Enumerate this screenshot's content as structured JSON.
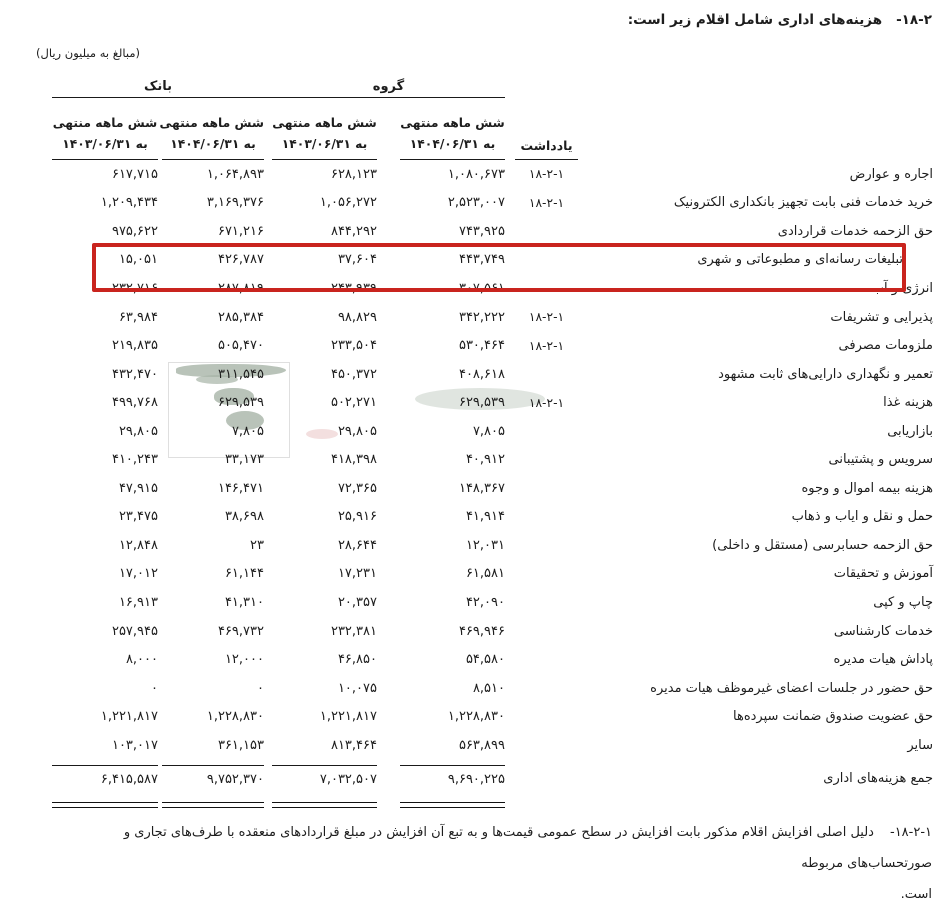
{
  "title": {
    "number": "۱۸-۲-",
    "text": "هزینه‌های اداری شامل اقلام زیر است:"
  },
  "unit_note": "(مبالغ به میلیون ریال)",
  "table": {
    "group_headers": {
      "bank": "بانک",
      "group": "گروه"
    },
    "col_headers": {
      "period_line": "شش ماهه منتهی",
      "bank_1403": "به ۱۴۰۳/۰۶/۳۱",
      "bank_1404": "به ۱۴۰۴/۰۶/۳۱",
      "group_1403": "به ۱۴۰۳/۰۶/۳۱",
      "group_1404": "به ۱۴۰۴/۰۶/۳۱",
      "note": "یادداشت"
    },
    "rows": [
      {
        "label": "اجاره و عوارض",
        "note": "۱۸-۲-۱",
        "group_1404": "۱,۰۸۰,۶۷۳",
        "group_1403": "۶۲۸,۱۲۳",
        "bank_1404": "۱,۰۶۴,۸۹۳",
        "bank_1403": "۶۱۷,۷۱۵",
        "highlight": false
      },
      {
        "label": "خرید خدمات فنی بابت تجهیز بانکداری الکترونیک",
        "note": "۱۸-۲-۱",
        "group_1404": "۲,۵۲۳,۰۰۷",
        "group_1403": "۱,۰۵۶,۲۷۲",
        "bank_1404": "۳,۱۶۹,۳۷۶",
        "bank_1403": "۱,۲۰۹,۴۳۴",
        "highlight": false
      },
      {
        "label": "حق الزحمه خدمات قراردادی",
        "note": "",
        "group_1404": "۷۴۳,۹۲۵",
        "group_1403": "۸۴۴,۲۹۲",
        "bank_1404": "۶۷۱,۲۱۶",
        "bank_1403": "۹۷۵,۶۲۲",
        "highlight": false
      },
      {
        "label": "تبلیغات رسانه‌ای و مطبوعاتی و شهری",
        "note": "",
        "group_1404": "۴۴۳,۷۴۹",
        "group_1403": "۳۷,۶۰۴",
        "bank_1404": "۴۲۶,۷۸۷",
        "bank_1403": "۱۵,۰۵۱",
        "highlight": true
      },
      {
        "label": "انرژی و آب",
        "note": "",
        "group_1404": "۳۰۷,۵۶۱",
        "group_1403": "۲۴۳,۹۳۹",
        "bank_1404": "۲۸۷,۸۱۹",
        "bank_1403": "۲۳۲,۷۱۶",
        "highlight": false
      },
      {
        "label": "پذیرایی و تشریفات",
        "note": "۱۸-۲-۱",
        "group_1404": "۳۴۲,۲۲۲",
        "group_1403": "۹۸,۸۲۹",
        "bank_1404": "۲۸۵,۳۸۴",
        "bank_1403": "۶۳,۹۸۴",
        "highlight": false
      },
      {
        "label": "ملزومات مصرفی",
        "note": "۱۸-۲-۱",
        "group_1404": "۵۳۰,۴۶۴",
        "group_1403": "۲۳۳,۵۰۴",
        "bank_1404": "۵۰۵,۴۷۰",
        "bank_1403": "۲۱۹,۸۳۵",
        "highlight": false
      },
      {
        "label": "تعمیر و نگهداری دارایی‌های ثابت مشهود",
        "note": "",
        "group_1404": "۴۰۸,۶۱۸",
        "group_1403": "۴۵۰,۳۷۲",
        "bank_1404": "۳۱۱,۵۴۵",
        "bank_1403": "۴۳۲,۴۷۰",
        "highlight": false
      },
      {
        "label": "هزینه غذا",
        "note": "۱۸-۲-۱",
        "group_1404": "۶۲۹,۵۳۹",
        "group_1403": "۵۰۲,۲۷۱",
        "bank_1404": "۶۲۹,۵۳۹",
        "bank_1403": "۴۹۹,۷۶۸",
        "highlight": false
      },
      {
        "label": "بازاریابی",
        "note": "",
        "group_1404": "۷,۸۰۵",
        "group_1403": "۲۹,۸۰۵",
        "bank_1404": "۷,۸۰۵",
        "bank_1403": "۲۹,۸۰۵",
        "highlight": false
      },
      {
        "label": "سرویس و پشتیبانی",
        "note": "",
        "group_1404": "۴۰,۹۱۲",
        "group_1403": "۴۱۸,۳۹۸",
        "bank_1404": "۳۳,۱۷۳",
        "bank_1403": "۴۱۰,۲۴۳",
        "highlight": false
      },
      {
        "label": "هزینه بیمه اموال و وجوه",
        "note": "",
        "group_1404": "۱۴۸,۳۶۷",
        "group_1403": "۷۲,۳۶۵",
        "bank_1404": "۱۴۶,۴۷۱",
        "bank_1403": "۴۷,۹۱۵",
        "highlight": false
      },
      {
        "label": "حمل و نقل و ایاب و ذهاب",
        "note": "",
        "group_1404": "۴۱,۹۱۴",
        "group_1403": "۲۵,۹۱۶",
        "bank_1404": "۳۸,۶۹۸",
        "bank_1403": "۲۳,۴۷۵",
        "highlight": false
      },
      {
        "label": "حق الزحمه حسابرسی (مستقل و داخلی)",
        "note": "",
        "group_1404": "۱۲,۰۳۱",
        "group_1403": "۲۸,۶۴۴",
        "bank_1404": "۲۳",
        "bank_1403": "۱۲,۸۴۸",
        "highlight": false
      },
      {
        "label": "آموزش و تحقیقات",
        "note": "",
        "group_1404": "۶۱,۵۸۱",
        "group_1403": "۱۷,۲۳۱",
        "bank_1404": "۶۱,۱۴۴",
        "bank_1403": "۱۷,۰۱۲",
        "highlight": false
      },
      {
        "label": "چاپ و کپی",
        "note": "",
        "group_1404": "۴۲,۰۹۰",
        "group_1403": "۲۰,۳۵۷",
        "bank_1404": "۴۱,۳۱۰",
        "bank_1403": "۱۶,۹۱۳",
        "highlight": false
      },
      {
        "label": "خدمات کارشناسی",
        "note": "",
        "group_1404": "۴۶۹,۹۴۶",
        "group_1403": "۲۳۲,۳۸۱",
        "bank_1404": "۴۶۹,۷۳۲",
        "bank_1403": "۲۵۷,۹۴۵",
        "highlight": false
      },
      {
        "label": "پاداش هیات مدیره",
        "note": "",
        "group_1404": "۵۴,۵۸۰",
        "group_1403": "۴۶,۸۵۰",
        "bank_1404": "۱۲,۰۰۰",
        "bank_1403": "۸,۰۰۰",
        "highlight": false
      },
      {
        "label": "حق حضور در جلسات اعضای غیرموظف هیات مدیره",
        "note": "",
        "group_1404": "۸,۵۱۰",
        "group_1403": "۱۰,۰۷۵",
        "bank_1404": "۰",
        "bank_1403": "۰",
        "highlight": false
      },
      {
        "label": "حق عضویت صندوق ضمانت سپرده‌ها",
        "note": "",
        "group_1404": "۱,۲۲۸,۸۳۰",
        "group_1403": "۱,۲۲۱,۸۱۷",
        "bank_1404": "۱,۲۲۸,۸۳۰",
        "bank_1403": "۱,۲۲۱,۸۱۷",
        "highlight": false
      },
      {
        "label": "سایر",
        "note": "",
        "group_1404": "۵۶۳,۸۹۹",
        "group_1403": "۸۱۳,۴۶۴",
        "bank_1404": "۳۶۱,۱۵۳",
        "bank_1403": "۱۰۳,۰۱۷",
        "highlight": false
      }
    ],
    "total": {
      "label": "جمع هزینه‌های اداری",
      "group_1404": "۹,۶۹۰,۲۲۵",
      "group_1403": "۷,۰۳۲,۵۰۷",
      "bank_1404": "۹,۷۵۲,۳۷۰",
      "bank_1403": "۶,۴۱۵,۵۸۷"
    }
  },
  "footnote": {
    "number": "۱۸-۲-۱-",
    "line1": "دلیل اصلی افزایش اقلام مذکور بابت افزایش در سطح عمومی قیمت‌ها و به تبع آن افزایش در مبلغ قراردادهای منعقده با طرف‌های تجاری و صورتحساب‌های مربوطه",
    "line2": "است."
  },
  "colors": {
    "highlight_box": "#c9241e",
    "watermark_green": "#a7b4a7",
    "watermark_pink": "#d69696"
  }
}
